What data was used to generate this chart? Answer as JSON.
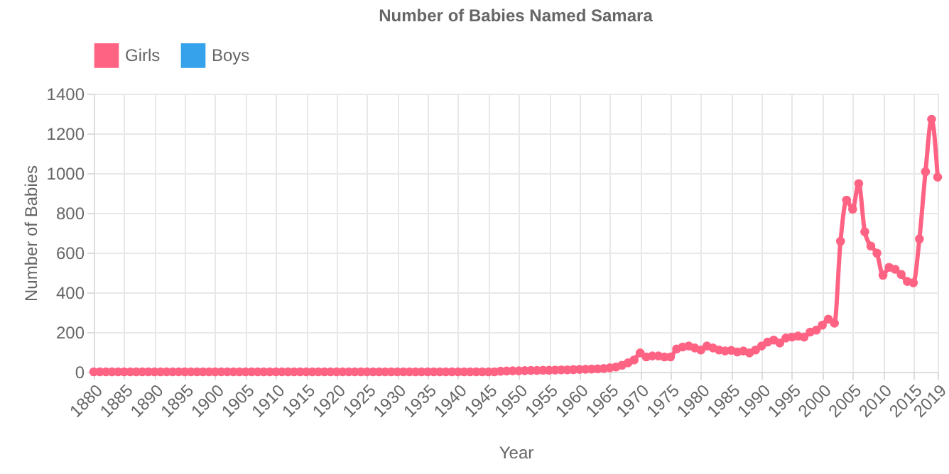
{
  "chart_data": {
    "type": "line",
    "title": "Number of Babies Named Samara",
    "xlabel": "Year",
    "ylabel": "Number of Babies",
    "x": [
      1880,
      1881,
      1882,
      1883,
      1884,
      1885,
      1886,
      1887,
      1888,
      1889,
      1890,
      1891,
      1892,
      1893,
      1894,
      1895,
      1896,
      1897,
      1898,
      1899,
      1900,
      1901,
      1902,
      1903,
      1904,
      1905,
      1906,
      1907,
      1908,
      1909,
      1910,
      1911,
      1912,
      1913,
      1914,
      1915,
      1916,
      1917,
      1918,
      1919,
      1920,
      1921,
      1922,
      1923,
      1924,
      1925,
      1926,
      1927,
      1928,
      1929,
      1930,
      1931,
      1932,
      1933,
      1934,
      1935,
      1936,
      1937,
      1938,
      1939,
      1940,
      1941,
      1942,
      1943,
      1944,
      1945,
      1946,
      1947,
      1948,
      1949,
      1950,
      1951,
      1952,
      1953,
      1954,
      1955,
      1956,
      1957,
      1958,
      1959,
      1960,
      1961,
      1962,
      1963,
      1964,
      1965,
      1966,
      1967,
      1968,
      1969,
      1970,
      1971,
      1972,
      1973,
      1974,
      1975,
      1976,
      1977,
      1978,
      1979,
      1980,
      1981,
      1982,
      1983,
      1984,
      1985,
      1986,
      1987,
      1988,
      1989,
      1990,
      1991,
      1992,
      1993,
      1994,
      1995,
      1996,
      1997,
      1998,
      1999,
      2000,
      2001,
      2002,
      2003,
      2004,
      2005,
      2006,
      2007,
      2008,
      2009,
      2010,
      2011,
      2012,
      2013,
      2014,
      2015,
      2016,
      2017,
      2018,
      2019
    ],
    "series": [
      {
        "name": "Girls",
        "color": "#ff6384",
        "values": [
          0,
          0,
          0,
          0,
          0,
          0,
          0,
          0,
          0,
          0,
          0,
          0,
          0,
          0,
          0,
          0,
          0,
          0,
          0,
          0,
          0,
          0,
          0,
          0,
          0,
          0,
          0,
          0,
          0,
          0,
          0,
          0,
          0,
          0,
          0,
          0,
          0,
          0,
          0,
          0,
          0,
          0,
          0,
          0,
          0,
          0,
          0,
          0,
          0,
          0,
          0,
          0,
          0,
          0,
          0,
          0,
          0,
          0,
          0,
          0,
          0,
          0,
          0,
          0,
          0,
          0,
          0,
          3,
          4,
          5,
          5,
          6,
          7,
          7,
          8,
          8,
          9,
          10,
          10,
          11,
          12,
          13,
          14,
          15,
          17,
          20,
          24,
          33,
          45,
          60,
          95,
          75,
          80,
          80,
          75,
          75,
          115,
          125,
          130,
          120,
          110,
          130,
          120,
          110,
          105,
          108,
          100,
          105,
          95,
          110,
          130,
          150,
          160,
          145,
          170,
          175,
          180,
          175,
          200,
          210,
          235,
          265,
          245,
          657,
          864,
          819,
          947,
          705,
          633,
          597,
          486,
          526,
          516,
          490,
          455,
          448,
          669,
          1007,
          1271,
          980
        ]
      },
      {
        "name": "Boys",
        "color": "#36a2eb",
        "values": [
          null,
          null,
          null,
          null,
          null,
          null,
          null,
          null,
          null,
          null,
          null,
          null,
          null,
          null,
          null,
          null,
          null,
          null,
          null,
          null,
          null,
          null,
          null,
          null,
          null,
          null,
          null,
          null,
          null,
          null,
          null,
          null,
          null,
          null,
          null,
          null,
          null,
          null,
          null,
          null,
          null,
          null,
          null,
          null,
          null,
          null,
          null,
          null,
          null,
          null,
          null,
          null,
          null,
          null,
          null,
          null,
          null,
          null,
          null,
          null,
          null,
          null,
          null,
          null,
          null,
          null,
          null,
          null,
          null,
          null,
          null,
          null,
          null,
          null,
          null,
          null,
          null,
          null,
          null,
          null,
          null,
          null,
          null,
          null,
          null,
          null,
          null,
          null,
          null,
          null,
          null,
          null,
          null,
          null,
          null,
          null,
          null,
          null,
          null,
          null,
          null,
          null,
          null,
          null,
          null,
          null,
          null,
          null,
          null,
          null,
          null,
          null,
          null,
          null,
          null,
          null,
          null,
          null,
          null,
          null,
          null,
          null,
          null,
          null,
          null,
          null,
          null,
          null,
          null,
          null,
          null,
          null,
          null,
          null,
          null,
          null,
          null,
          null,
          null,
          null
        ]
      }
    ],
    "xlim": [
      1880,
      2019
    ],
    "xticks": [
      1880,
      1885,
      1890,
      1895,
      1900,
      1905,
      1910,
      1915,
      1920,
      1925,
      1930,
      1935,
      1940,
      1945,
      1950,
      1955,
      1960,
      1965,
      1970,
      1975,
      1980,
      1985,
      1990,
      1995,
      2000,
      2005,
      2010,
      2015,
      2019
    ],
    "ylim": [
      0,
      1400
    ],
    "yticks": [
      0,
      200,
      400,
      600,
      800,
      1000,
      1200,
      1400
    ],
    "grid": true,
    "legend": "top",
    "marker": "circle",
    "line_style": "solid"
  }
}
